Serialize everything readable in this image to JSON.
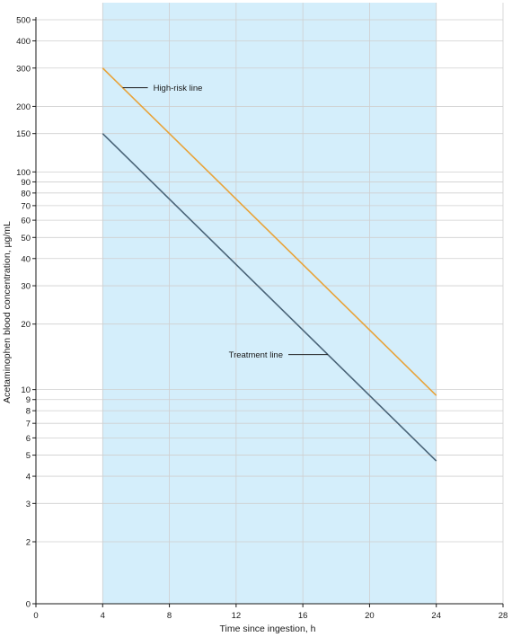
{
  "chart_data": {
    "type": "line",
    "xlabel": "Time since ingestion, h",
    "ylabel": "Acetaminophen blood concentration, µg/mL",
    "xlim": [
      0,
      28
    ],
    "ylim": [
      0,
      500
    ],
    "y_scale": "log",
    "x_ticks": [
      0,
      4,
      8,
      12,
      16,
      20,
      24,
      28
    ],
    "y_ticks": [
      500,
      400,
      300,
      200,
      150,
      100,
      90,
      80,
      70,
      60,
      50,
      40,
      30,
      20,
      10,
      9,
      8,
      7,
      6,
      5,
      4,
      3,
      2,
      0
    ],
    "grid": true,
    "shaded_region": {
      "x": [
        4,
        24
      ],
      "color": "#d4eefb"
    },
    "series": [
      {
        "name": "High-risk line",
        "x": [
          4,
          24
        ],
        "y": [
          300,
          9.4
        ],
        "color": "#e8a33a"
      },
      {
        "name": "Treatment line",
        "x": [
          4,
          24
        ],
        "y": [
          150,
          4.7
        ],
        "color": "#4a6478"
      }
    ],
    "annotations": [
      {
        "text": "High-risk line",
        "series": 0
      },
      {
        "text": "Treatment line",
        "series": 1
      }
    ]
  }
}
